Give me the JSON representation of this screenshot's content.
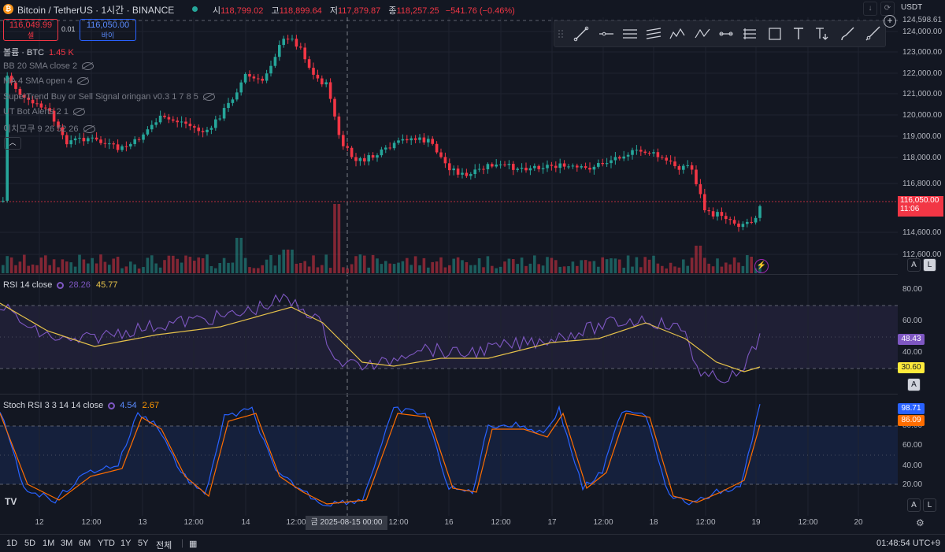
{
  "header": {
    "symbol": "Bitcoin / TetherUS · 1시간 · BINANCE",
    "ohlc": {
      "o_label": "시",
      "o": "118,799.02",
      "h_label": "고",
      "h": "118,899.64",
      "l_label": "저",
      "l": "117,879.87",
      "c_label": "종",
      "c": "118,257.25",
      "chg": "−541.76 (−0.46%)"
    },
    "sell_price": "116,049.99",
    "sell_label": "셀",
    "buy_price": "116,050.00",
    "buy_label": "바이",
    "spread": "0.01",
    "currency": "USDT"
  },
  "legends": {
    "volume_label": "볼륨 · BTC",
    "volume_value": "1.45 K",
    "indicators": [
      "BB 20 SMA close 2",
      "MA 4 SMA open 4",
      "SuperTrend Buy or Sell Signal oringan v0.3 1 7 8 5",
      "UT Bot Alerts 2 1",
      "이치모쿠 9 26 52 26"
    ]
  },
  "rsi": {
    "label": "RSI 14 close",
    "v1": "28.26",
    "v2": "45.77",
    "tag1": "48.43",
    "tag2": "30.60"
  },
  "stoch": {
    "label": "Stoch RSI 3 3 14 14 close",
    "k": "4.54",
    "d": "2.67",
    "tag1": "98.71",
    "tag2": "86.09"
  },
  "price_axis": [
    "124,598.61",
    "124,000.00",
    "123,000.00",
    "122,000.00",
    "121,000.00",
    "120,000.00",
    "119,000.00",
    "118,000.00",
    "116,800.00",
    "114,600.00",
    "112,600.00"
  ],
  "price_tag": {
    "price": "116,050.00",
    "countdown": "11:06"
  },
  "rsi_axis": [
    "80.00",
    "60.00",
    "40.00"
  ],
  "stoch_axis": [
    "80.00",
    "60.00",
    "40.00",
    "20.00"
  ],
  "time_axis": [
    "12",
    "12:00",
    "13",
    "12:00",
    "14",
    "12:00",
    "12:00",
    "16",
    "12:00",
    "17",
    "12:00",
    "18",
    "12:00",
    "19",
    "12:00",
    "20"
  ],
  "crosshair_time": "금 2025-08-15  00:00",
  "bottom": {
    "ranges": [
      "1D",
      "5D",
      "1M",
      "3M",
      "6M",
      "YTD",
      "1Y",
      "5Y",
      "전체"
    ],
    "clock": "01:48:54 UTC+9"
  },
  "toggles": {
    "a": "A",
    "l": "L"
  },
  "colors": {
    "up": "#26a69a",
    "down": "#f23645",
    "rsi": "#7e57c2",
    "rsi_ma": "#e6c24a",
    "stoch_k": "#2962ff",
    "stoch_d": "#ff6d00"
  }
}
